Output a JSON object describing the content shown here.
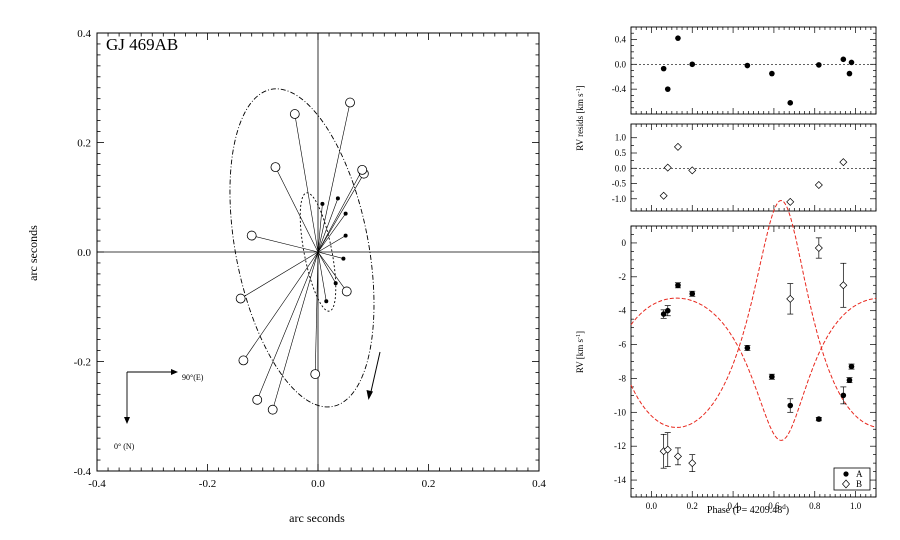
{
  "chart_data": [
    {
      "type": "scatter",
      "title": "GJ 469AB",
      "xlabel": "arc seconds",
      "ylabel": "arc seconds",
      "xlim": [
        -0.4,
        0.4
      ],
      "ylim": [
        0.4,
        -0.4
      ],
      "y_inverted": true,
      "xticks": [
        "-0.4",
        "-0.2",
        "0.0",
        "0.2",
        "0.4"
      ],
      "yticks": [
        "-0.4",
        "-0.2",
        "0.0",
        "0.2",
        "0.4"
      ],
      "compass": {
        "east_label": "90°(E)",
        "north_label": "0° (N)"
      },
      "primary_orbit": {
        "cx": 0.0,
        "cy": 0.0,
        "rx": 0.025,
        "ry": 0.11,
        "rot_deg": -11,
        "style": "dashed"
      },
      "secondary_orbit": {
        "cx": -0.029,
        "cy": 0.0075,
        "rx": 0.12,
        "ry": 0.295,
        "rot_deg": -11,
        "style": "dash-dot"
      },
      "series": [
        {
          "name": "A",
          "marker": "filled-dot",
          "x": [
            0.015,
            0.032,
            0.046,
            0.05,
            0.05,
            0.036,
            0.008
          ],
          "y": [
            -0.09,
            -0.057,
            -0.012,
            0.03,
            0.07,
            0.098,
            0.088
          ]
        },
        {
          "name": "B",
          "marker": "open-circle",
          "x": [
            -0.11,
            -0.082,
            -0.135,
            -0.14,
            -0.12,
            -0.005,
            0.052,
            0.083,
            0.08,
            0.058,
            -0.042,
            -0.077
          ],
          "y": [
            -0.27,
            -0.288,
            -0.198,
            -0.085,
            0.03,
            -0.223,
            -0.072,
            0.143,
            0.15,
            0.273,
            0.252,
            0.155
          ]
        }
      ]
    },
    {
      "type": "scatter",
      "xlabel": "",
      "ylabel": "RV resids [km s-1]",
      "ylabel_main": "RV resids [km s",
      "ylabel_sup": "-1",
      "ylabel_end": "]",
      "xlim": [
        -0.1,
        1.1
      ],
      "ylim": [
        -0.8,
        0.6
      ],
      "yticks": [
        "0.4",
        "0.0",
        "-0.4"
      ],
      "zero_line": true,
      "series": [
        {
          "name": "A",
          "marker": "filled-dot",
          "x": [
            0.06,
            0.08,
            0.13,
            0.2,
            0.47,
            0.59,
            0.68,
            0.82,
            0.94,
            0.97,
            0.98
          ],
          "y": [
            -0.07,
            -0.4,
            0.42,
            0.0,
            -0.02,
            -0.15,
            -0.62,
            -0.01,
            0.08,
            -0.15,
            0.03
          ]
        }
      ]
    },
    {
      "type": "scatter",
      "xlabel": "",
      "ylabel": "",
      "xlim": [
        -0.1,
        1.1
      ],
      "ylim": [
        -1.4,
        1.45
      ],
      "yticks": [
        "1.0",
        "0.5",
        "0.0",
        "-0.5",
        "-1.0"
      ],
      "zero_line": true,
      "series": [
        {
          "name": "B",
          "marker": "open-diamond",
          "x": [
            0.06,
            0.08,
            0.13,
            0.2,
            0.68,
            0.82,
            0.94
          ],
          "y": [
            -0.9,
            0.02,
            0.7,
            -0.07,
            -1.1,
            -0.55,
            0.2
          ]
        }
      ]
    },
    {
      "type": "scatter",
      "xlabel": "Phase (P= 4209.48d)",
      "xlabel_main": "Phase (P= 4209.48",
      "xlabel_sup": "d",
      "xlabel_end": ")",
      "ylabel": "RV [km s-1]",
      "ylabel_main": "RV [km s",
      "ylabel_sup": "-1",
      "ylabel_end": "]",
      "xlim": [
        -0.1,
        1.1
      ],
      "ylim": [
        -15,
        1
      ],
      "xticks": [
        "0.0",
        "0.2",
        "0.4",
        "0.6",
        "0.8",
        "1.0"
      ],
      "yticks": [
        "0",
        "-2",
        "-4",
        "-6",
        "-8",
        "-10",
        "-12",
        "-14"
      ],
      "legend": {
        "placement": "bottom-right",
        "entries": [
          "A",
          "B"
        ]
      },
      "curve_color": "#e8281e",
      "series": [
        {
          "name": "A",
          "marker": "filled-dot",
          "x": [
            0.06,
            0.08,
            0.13,
            0.2,
            0.47,
            0.59,
            0.68,
            0.82,
            0.94,
            0.97,
            0.98
          ],
          "y": [
            -4.2,
            -4.0,
            -2.5,
            -3.0,
            -6.2,
            -7.9,
            -9.6,
            -10.4,
            -9.0,
            -8.1,
            -7.3
          ],
          "err": [
            0.25,
            0.3,
            0.15,
            0.15,
            0.15,
            0.15,
            0.4,
            0.1,
            0.5,
            0.15,
            0.15
          ]
        },
        {
          "name": "B",
          "marker": "open-diamond",
          "x": [
            0.06,
            0.08,
            0.13,
            0.2,
            0.68,
            0.82,
            0.94
          ],
          "y": [
            -12.3,
            -12.2,
            -12.6,
            -13.0,
            -3.3,
            -0.3,
            -2.5
          ],
          "err": [
            1.0,
            1.0,
            0.5,
            0.5,
            0.9,
            0.6,
            1.3
          ]
        }
      ]
    }
  ]
}
